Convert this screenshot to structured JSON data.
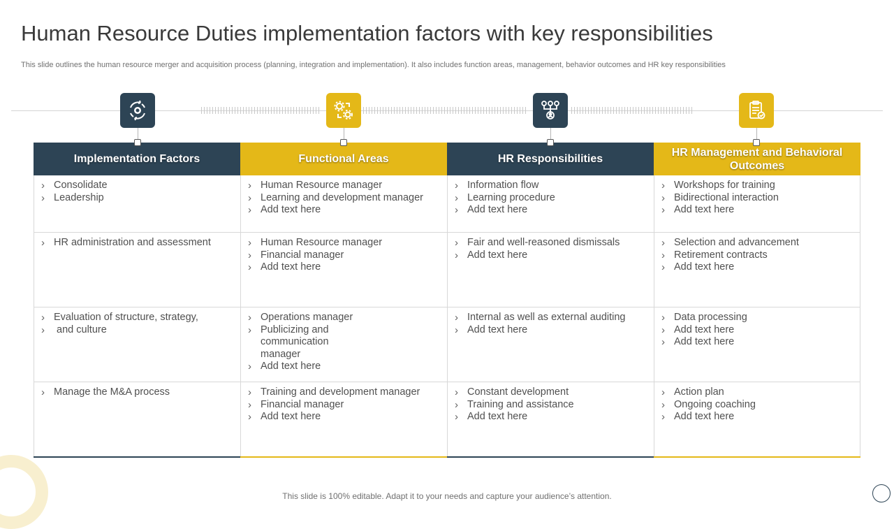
{
  "title": "Human Resource Duties implementation factors with key responsibilities",
  "subtitle": "This slide outlines the human resource merger and acquisition process (planning, integration and implementation). It also includes function areas, management, behavior outcomes and HR key responsibilities",
  "footer": "This slide is 100% editable. Adapt it to your needs and capture your audience’s attention.",
  "colors": {
    "dark": "#2d4455",
    "gold": "#e4b818"
  },
  "columns": [
    {
      "header": "Implementation Factors",
      "icon": "refresh-cycle-icon",
      "color": "dark"
    },
    {
      "header": "Functional Areas",
      "icon": "gears-icon",
      "color": "gold"
    },
    {
      "header": "HR Responsibilities",
      "icon": "org-network-icon",
      "color": "dark"
    },
    {
      "header": "HR Management and Behavioral Outcomes",
      "icon": "clipboard-check-icon",
      "color": "gold"
    }
  ],
  "rows": [
    [
      [
        "Consolidate",
        "Leadership"
      ],
      [
        "Human Resource manager",
        "Learning and development manager",
        "Add text here"
      ],
      [
        "Information flow",
        "Learning procedure",
        "Add text here"
      ],
      [
        "Workshops for training",
        "Bidirectional interaction",
        "Add text here"
      ]
    ],
    [
      [
        "HR administration and assessment"
      ],
      [
        "Human Resource manager",
        "Financial manager",
        "Add text here"
      ],
      [
        "Fair and well-reasoned dismissals",
        "Add text here"
      ],
      [
        "Selection and advancement",
        "Retirement contracts",
        "Add text here"
      ]
    ],
    [
      [
        "Evaluation of structure, strategy,",
        " and culture"
      ],
      [
        "Operations manager",
        "Publicizing and communication manager",
        "Add text here"
      ],
      [
        "Internal as well as external auditing",
        "Add text here"
      ],
      [
        "Data processing",
        "Add text here",
        "Add text here"
      ]
    ],
    [
      [
        "Manage the M&A process"
      ],
      [
        "Training and development manager",
        "Financial manager",
        "Add text here"
      ],
      [
        "Constant development",
        "Training and assistance",
        "Add text here"
      ],
      [
        "Action plan",
        "Ongoing coaching",
        "Add text here"
      ]
    ]
  ]
}
